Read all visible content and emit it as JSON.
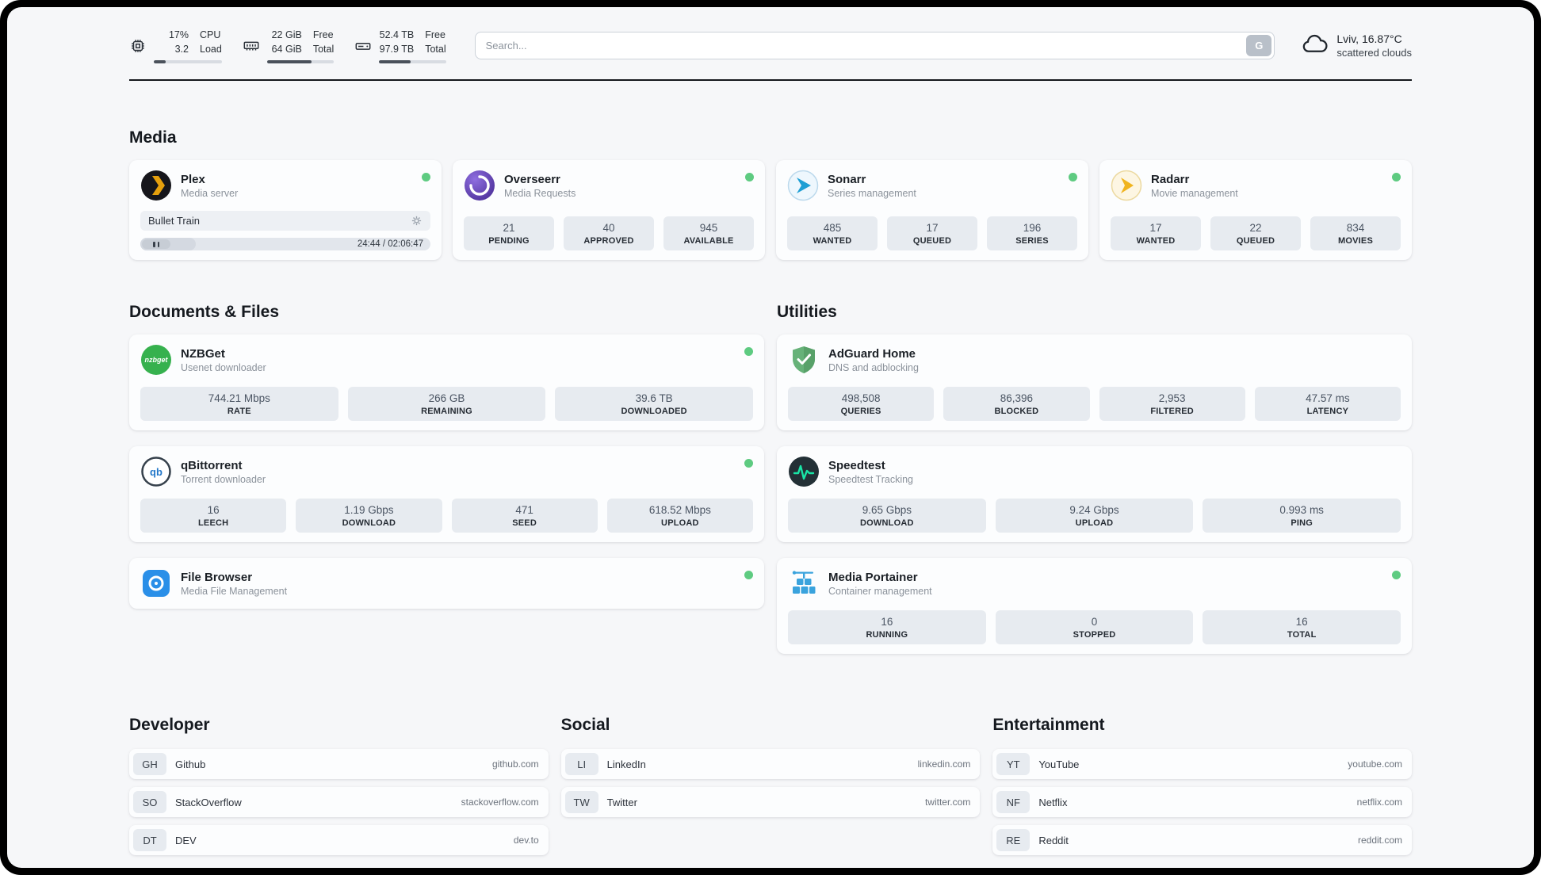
{
  "header": {
    "cpu": {
      "value": "17%",
      "load": "3.2",
      "label1": "CPU",
      "label2": "Load",
      "percent": 17
    },
    "ram": {
      "value": "22 GiB",
      "total": "64 GiB",
      "label1": "Free",
      "label2": "Total",
      "percent": 66
    },
    "disk": {
      "value": "52.4 TB",
      "total": "97.9 TB",
      "label1": "Free",
      "label2": "Total",
      "percent": 47
    },
    "search": {
      "placeholder": "Search...",
      "button_label": "G"
    },
    "weather": {
      "location": "Lviv, 16.87°C",
      "condition": "scattered clouds"
    }
  },
  "sections": {
    "media": "Media",
    "documents": "Documents & Files",
    "utilities": "Utilities",
    "developer": "Developer",
    "social": "Social",
    "entertainment": "Entertainment"
  },
  "apps": {
    "plex": {
      "name": "Plex",
      "desc": "Media server",
      "now_playing": "Bullet Train",
      "time": "24:44 / 02:06:47",
      "progress_percent": 19
    },
    "overseerr": {
      "name": "Overseerr",
      "desc": "Media Requests",
      "stats": [
        {
          "value": "21",
          "label": "PENDING"
        },
        {
          "value": "40",
          "label": "APPROVED"
        },
        {
          "value": "945",
          "label": "AVAILABLE"
        }
      ]
    },
    "sonarr": {
      "name": "Sonarr",
      "desc": "Series management",
      "stats": [
        {
          "value": "485",
          "label": "WANTED"
        },
        {
          "value": "17",
          "label": "QUEUED"
        },
        {
          "value": "196",
          "label": "SERIES"
        }
      ]
    },
    "radarr": {
      "name": "Radarr",
      "desc": "Movie management",
      "stats": [
        {
          "value": "17",
          "label": "WANTED"
        },
        {
          "value": "22",
          "label": "QUEUED"
        },
        {
          "value": "834",
          "label": "MOVIES"
        }
      ]
    },
    "nzbget": {
      "name": "NZBGet",
      "desc": "Usenet downloader",
      "icon_text": "nzbget",
      "stats": [
        {
          "value": "744.21 Mbps",
          "label": "RATE"
        },
        {
          "value": "266 GB",
          "label": "REMAINING"
        },
        {
          "value": "39.6 TB",
          "label": "DOWNLOADED"
        }
      ]
    },
    "qbittorrent": {
      "name": "qBittorrent",
      "desc": "Torrent downloader",
      "icon_text": "qb",
      "stats": [
        {
          "value": "16",
          "label": "LEECH"
        },
        {
          "value": "1.19 Gbps",
          "label": "DOWNLOAD"
        },
        {
          "value": "471",
          "label": "SEED"
        },
        {
          "value": "618.52 Mbps",
          "label": "UPLOAD"
        }
      ]
    },
    "filebrowser": {
      "name": "File Browser",
      "desc": "Media File Management"
    },
    "adguard": {
      "name": "AdGuard Home",
      "desc": "DNS and adblocking",
      "stats": [
        {
          "value": "498,508",
          "label": "QUERIES"
        },
        {
          "value": "86,396",
          "label": "BLOCKED"
        },
        {
          "value": "2,953",
          "label": "FILTERED"
        },
        {
          "value": "47.57 ms",
          "label": "LATENCY"
        }
      ]
    },
    "speedtest": {
      "name": "Speedtest",
      "desc": "Speedtest Tracking",
      "stats": [
        {
          "value": "9.65 Gbps",
          "label": "DOWNLOAD"
        },
        {
          "value": "9.24 Gbps",
          "label": "UPLOAD"
        },
        {
          "value": "0.993 ms",
          "label": "PING"
        }
      ]
    },
    "portainer": {
      "name": "Media Portainer",
      "desc": "Container management",
      "stats": [
        {
          "value": "16",
          "label": "RUNNING"
        },
        {
          "value": "0",
          "label": "STOPPED"
        },
        {
          "value": "16",
          "label": "TOTAL"
        }
      ]
    }
  },
  "bookmarks": {
    "developer": [
      {
        "abbr": "GH",
        "name": "Github",
        "url": "github.com"
      },
      {
        "abbr": "SO",
        "name": "StackOverflow",
        "url": "stackoverflow.com"
      },
      {
        "abbr": "DT",
        "name": "DEV",
        "url": "dev.to"
      }
    ],
    "social": [
      {
        "abbr": "LI",
        "name": "LinkedIn",
        "url": "linkedin.com"
      },
      {
        "abbr": "TW",
        "name": "Twitter",
        "url": "twitter.com"
      }
    ],
    "entertainment": [
      {
        "abbr": "YT",
        "name": "YouTube",
        "url": "youtube.com"
      },
      {
        "abbr": "NF",
        "name": "Netflix",
        "url": "netflix.com"
      },
      {
        "abbr": "RE",
        "name": "Reddit",
        "url": "reddit.com"
      }
    ]
  },
  "colors": {
    "status_online": "#5ecb81",
    "plex_yellow": "#e5a00d",
    "sonarr_blue": "#1e9fd4",
    "radarr_yellow": "#f0b41f",
    "nzbget_green": "#36b14e",
    "adguard_green": "#67b279",
    "speedtest_accent": "#19e5a6",
    "portainer_blue": "#3aa3dd",
    "filebrowser_blue": "#2a8fe8"
  }
}
